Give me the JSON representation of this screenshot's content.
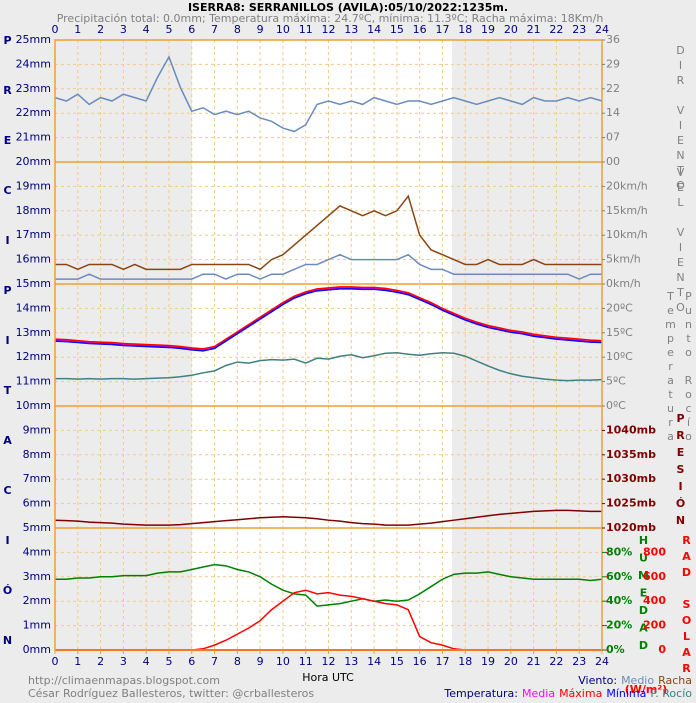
{
  "chart_data": [
    {
      "type": "line",
      "title": "ISERRA8: SERRANILLOS (AVILA):05/10/2022:1235m.",
      "subtitle": "Precipitación total: 0.0mm; Temperatura máxima: 24.7ºC, mínima: 11.3ºC; Racha máxima: 18Km/h",
      "x_label": "Hora UTC",
      "y_label": "PRECIPITACIÓN",
      "grid": true,
      "xlim": [
        0,
        24
      ],
      "xticks": [
        0,
        1,
        2,
        3,
        4,
        5,
        6,
        7,
        8,
        9,
        10,
        11,
        12,
        13,
        14,
        15,
        16,
        17,
        18,
        19,
        20,
        21,
        22,
        23,
        24
      ],
      "ylim": [
        0,
        25
      ],
      "yticks": [
        {
          "value": 0,
          "label": "0mm"
        },
        {
          "value": 1,
          "label": "1mm"
        },
        {
          "value": 2,
          "label": "2mm"
        },
        {
          "value": 3,
          "label": "3mm"
        },
        {
          "value": 4,
          "label": "4mm"
        },
        {
          "value": 5,
          "label": "5mm"
        },
        {
          "value": 6,
          "label": "6mm"
        },
        {
          "value": 7,
          "label": "7mm"
        },
        {
          "value": 8,
          "label": "8mm"
        },
        {
          "value": 9,
          "label": "9mm"
        },
        {
          "value": 10,
          "label": "10mm"
        },
        {
          "value": 11,
          "label": "11mm"
        },
        {
          "value": 12,
          "label": "12mm"
        },
        {
          "value": 13,
          "label": "13mm"
        },
        {
          "value": 14,
          "label": "14mm"
        },
        {
          "value": 15,
          "label": "15mm"
        },
        {
          "value": 16,
          "label": "16mm"
        },
        {
          "value": 17,
          "label": "17mm"
        },
        {
          "value": 18,
          "label": "18mm"
        },
        {
          "value": 19,
          "label": "19mm"
        },
        {
          "value": 20,
          "label": "20mm"
        },
        {
          "value": 21,
          "label": "21mm"
        },
        {
          "value": 22,
          "label": "22mm"
        },
        {
          "value": 23,
          "label": "23mm"
        },
        {
          "value": 24,
          "label": "24mm"
        },
        {
          "value": 25,
          "label": "25mm"
        }
      ],
      "x": [
        0,
        24
      ],
      "series": [
        {
          "color": "#ff0000",
          "values": [
            0,
            0
          ]
        }
      ]
    },
    {
      "type": "line",
      "y_label": "DIR VIENTO",
      "tick_color": "#808080",
      "ylim": [
        0,
        36
      ],
      "yticks": [
        {
          "value": 0,
          "label": "00"
        },
        {
          "value": 7.2,
          "label": "07"
        },
        {
          "value": 14.4,
          "label": "14"
        },
        {
          "value": 21.6,
          "label": "22"
        },
        {
          "value": 28.8,
          "label": "29"
        },
        36
      ],
      "x": [
        0,
        0.5,
        1,
        1.5,
        2,
        2.5,
        3,
        3.5,
        4,
        4.5,
        5,
        5.5,
        6,
        6.5,
        7,
        7.5,
        8,
        8.5,
        9,
        9.5,
        10,
        10.5,
        11,
        11.5,
        12,
        12.5,
        13,
        13.5,
        14,
        14.5,
        15,
        15.5,
        16,
        16.5,
        17,
        17.5,
        18,
        18.5,
        19,
        19.5,
        20,
        20.5,
        21,
        21.5,
        22,
        22.5,
        23,
        23.5,
        24
      ],
      "series": [
        {
          "color": "#6a8cbc",
          "values": [
            19,
            18,
            20,
            17,
            19,
            18,
            20,
            19,
            18,
            25,
            31,
            22,
            15,
            16,
            14,
            15,
            14,
            15,
            13,
            12,
            10,
            9,
            11,
            17,
            18,
            17,
            18,
            17,
            19,
            18,
            17,
            18,
            18,
            17,
            18,
            19,
            18,
            17,
            18,
            19,
            18,
            17,
            19,
            18,
            18,
            19,
            18,
            19,
            18
          ]
        }
      ]
    },
    {
      "type": "line",
      "y_label": "VEL VIENTO",
      "legend_title": "Viento:",
      "tick_color": "#808080",
      "ylim": [
        0,
        25
      ],
      "yticks": [
        {
          "value": 0,
          "label": "0km/h"
        },
        {
          "value": 5,
          "label": "5km/h"
        },
        {
          "value": 10,
          "label": "10km/h"
        },
        {
          "value": 15,
          "label": "15km/h"
        },
        {
          "value": 20,
          "label": "20km/h"
        }
      ],
      "x": [
        0,
        0.5,
        1,
        1.5,
        2,
        2.5,
        3,
        3.5,
        4,
        4.5,
        5,
        5.5,
        6,
        6.5,
        7,
        7.5,
        8,
        8.5,
        9,
        9.5,
        10,
        10.5,
        11,
        11.5,
        12,
        12.5,
        13,
        13.5,
        14,
        14.5,
        15,
        15.5,
        16,
        16.5,
        17,
        17.5,
        18,
        18.5,
        19,
        19.5,
        20,
        20.5,
        21,
        21.5,
        22,
        22.5,
        23,
        23.5,
        24
      ],
      "series": [
        {
          "name": "Medio",
          "color": "#6a8cbc",
          "values": [
            1,
            1,
            1,
            2,
            1,
            1,
            1,
            1,
            1,
            1,
            1,
            1,
            1,
            2,
            2,
            1,
            2,
            2,
            1,
            2,
            2,
            3,
            4,
            4,
            5,
            6,
            5,
            5,
            5,
            5,
            5,
            6,
            4,
            3,
            3,
            2,
            2,
            2,
            2,
            2,
            2,
            2,
            2,
            2,
            2,
            2,
            1,
            2,
            2
          ]
        },
        {
          "name": "Racha",
          "color": "#8b4513",
          "values": [
            4,
            4,
            3,
            4,
            4,
            4,
            3,
            4,
            3,
            3,
            3,
            3,
            4,
            4,
            4,
            4,
            4,
            4,
            3,
            5,
            6,
            8,
            10,
            12,
            14,
            16,
            15,
            14,
            15,
            14,
            15,
            18,
            10,
            7,
            6,
            5,
            4,
            4,
            5,
            4,
            4,
            4,
            5,
            4,
            4,
            4,
            4,
            4,
            4
          ]
        }
      ]
    },
    {
      "type": "line",
      "y_label": "Temperatura",
      "y_label_2": "Punto Rocío",
      "legend_title": "Temperatura:",
      "tick_color": "#808080",
      "ylim": [
        0,
        25
      ],
      "yticks": [
        {
          "value": 0,
          "label": "0ºC"
        },
        {
          "value": 5,
          "label": "5ºC"
        },
        {
          "value": 10,
          "label": "10ºC"
        },
        {
          "value": 15,
          "label": "15ºC"
        },
        {
          "value": 20,
          "label": "20ºC"
        }
      ],
      "x": [
        0,
        0.5,
        1,
        1.5,
        2,
        2.5,
        3,
        3.5,
        4,
        4.5,
        5,
        5.5,
        6,
        6.5,
        7,
        7.5,
        8,
        8.5,
        9,
        9.5,
        10,
        10.5,
        11,
        11.5,
        12,
        12.5,
        13,
        13.5,
        14,
        14.5,
        15,
        15.5,
        16,
        16.5,
        17,
        17.5,
        18,
        18.5,
        19,
        19.5,
        20,
        20.5,
        21,
        21.5,
        22,
        22.5,
        23,
        23.5,
        24
      ],
      "series": [
        {
          "name": "Media",
          "color": "#ff00ff",
          "values": [
            13.5,
            13.4,
            13.2,
            13.0,
            12.9,
            12.8,
            12.6,
            12.5,
            12.4,
            12.3,
            12.2,
            12.0,
            11.7,
            11.5,
            12.0,
            13.5,
            15.0,
            16.5,
            18.0,
            19.5,
            21.0,
            22.3,
            23.2,
            23.8,
            24.0,
            24.2,
            24.2,
            24.1,
            24.1,
            23.9,
            23.5,
            23.0,
            22.0,
            21.0,
            19.8,
            18.8,
            17.8,
            17.0,
            16.3,
            15.8,
            15.3,
            15.0,
            14.5,
            14.2,
            13.9,
            13.7,
            13.5,
            13.3,
            13.2
          ]
        },
        {
          "name": "Máxima",
          "color": "#ff0000",
          "values": [
            13.7,
            13.6,
            13.4,
            13.2,
            13.1,
            13.0,
            12.8,
            12.7,
            12.6,
            12.5,
            12.4,
            12.2,
            11.9,
            11.7,
            12.2,
            13.7,
            15.2,
            16.7,
            18.2,
            19.7,
            21.2,
            22.5,
            23.4,
            24.0,
            24.2,
            24.4,
            24.4,
            24.3,
            24.3,
            24.1,
            23.7,
            23.2,
            22.2,
            21.2,
            20.0,
            19.0,
            18.0,
            17.2,
            16.5,
            16.0,
            15.5,
            15.2,
            14.7,
            14.4,
            14.1,
            13.9,
            13.7,
            13.5,
            13.4
          ]
        },
        {
          "name": "Mínima",
          "color": "#0000ff",
          "values": [
            13.3,
            13.2,
            13.0,
            12.8,
            12.7,
            12.6,
            12.4,
            12.3,
            12.2,
            12.1,
            12.0,
            11.8,
            11.5,
            11.3,
            11.8,
            13.3,
            14.8,
            16.3,
            17.8,
            19.3,
            20.8,
            22.1,
            23.0,
            23.6,
            23.8,
            24.0,
            24.0,
            23.9,
            23.9,
            23.7,
            23.3,
            22.8,
            21.8,
            20.8,
            19.6,
            18.6,
            17.6,
            16.8,
            16.1,
            15.6,
            15.1,
            14.8,
            14.3,
            14.0,
            13.7,
            13.5,
            13.3,
            13.1,
            13.0
          ]
        },
        {
          "name": "P. Rocío",
          "color": "#408080",
          "values": [
            5.6,
            5.6,
            5.5,
            5.6,
            5.5,
            5.6,
            5.6,
            5.5,
            5.6,
            5.7,
            5.8,
            6.0,
            6.3,
            6.8,
            7.2,
            8.3,
            9.0,
            8.8,
            9.3,
            9.5,
            9.4,
            9.6,
            8.8,
            9.8,
            9.6,
            10.2,
            10.5,
            9.9,
            10.3,
            10.8,
            10.9,
            10.6,
            10.4,
            10.7,
            10.9,
            10.8,
            10.2,
            9.2,
            8.2,
            7.3,
            6.6,
            6.1,
            5.8,
            5.5,
            5.3,
            5.2,
            5.3,
            5.3,
            5.4
          ]
        }
      ]
    },
    {
      "type": "line",
      "y_label": "PRESIÓN",
      "tick_color": "#800000",
      "ylim": [
        1020,
        1045
      ],
      "yticks": [
        {
          "value": 1020,
          "label": "1020mb"
        },
        {
          "value": 1025,
          "label": "1025mb"
        },
        {
          "value": 1030,
          "label": "1030mb"
        },
        {
          "value": 1035,
          "label": "1035mb"
        },
        {
          "value": 1040,
          "label": "1040mb"
        }
      ],
      "x": [
        0,
        0.5,
        1,
        1.5,
        2,
        2.5,
        3,
        3.5,
        4,
        4.5,
        5,
        5.5,
        6,
        6.5,
        7,
        7.5,
        8,
        8.5,
        9,
        9.5,
        10,
        10.5,
        11,
        11.5,
        12,
        12.5,
        13,
        13.5,
        14,
        14.5,
        15,
        15.5,
        16,
        16.5,
        17,
        17.5,
        18,
        18.5,
        19,
        19.5,
        20,
        20.5,
        21,
        21.5,
        22,
        22.5,
        23,
        23.5,
        24
      ],
      "series": [
        {
          "color": "#800000",
          "values": [
            1021.6,
            1021.5,
            1021.4,
            1021.2,
            1021.1,
            1021.0,
            1020.8,
            1020.7,
            1020.6,
            1020.6,
            1020.6,
            1020.7,
            1020.9,
            1021.1,
            1021.3,
            1021.5,
            1021.7,
            1021.9,
            1022.1,
            1022.2,
            1022.3,
            1022.2,
            1022.1,
            1021.9,
            1021.6,
            1021.4,
            1021.1,
            1020.9,
            1020.8,
            1020.6,
            1020.6,
            1020.6,
            1020.8,
            1021.0,
            1021.3,
            1021.6,
            1021.9,
            1022.2,
            1022.5,
            1022.8,
            1023.0,
            1023.2,
            1023.4,
            1023.5,
            1023.6,
            1023.6,
            1023.5,
            1023.4,
            1023.4
          ]
        }
      ]
    },
    {
      "type": "line",
      "y_label": "HUMEDAD",
      "y2_label": "RAD SOLAR",
      "y2_unit": "(W/m²)",
      "tick_color": "#008000",
      "y2_tick_color": "#ff0000",
      "ylim": [
        0,
        100
      ],
      "yticks": [
        {
          "value": 0,
          "label": "0%"
        },
        {
          "value": 20,
          "label": "20%"
        },
        {
          "value": 40,
          "label": "40%"
        },
        {
          "value": 60,
          "label": "60%"
        },
        {
          "value": 80,
          "label": "80%"
        }
      ],
      "y2lim": [
        0,
        1000
      ],
      "y2ticks": [
        0,
        200,
        400,
        600,
        800
      ],
      "x": [
        0,
        0.5,
        1,
        1.5,
        2,
        2.5,
        3,
        3.5,
        4,
        4.5,
        5,
        5.5,
        6,
        6.5,
        7,
        7.5,
        8,
        8.5,
        9,
        9.5,
        10,
        10.5,
        11,
        11.5,
        12,
        12.5,
        13,
        13.5,
        14,
        14.5,
        15,
        15.5,
        16,
        16.5,
        17,
        17.5,
        18,
        18.5,
        19,
        19.5,
        20,
        20.5,
        21,
        21.5,
        22,
        22.5,
        23,
        23.5,
        24
      ],
      "series": [
        {
          "color": "#008000",
          "values": [
            58,
            58,
            59,
            59,
            60,
            60,
            61,
            61,
            61,
            63,
            64,
            64,
            66,
            68,
            70,
            69,
            66,
            64,
            60,
            54,
            49,
            46,
            45,
            36,
            37,
            38,
            40,
            42,
            40,
            41,
            40,
            41,
            46,
            52,
            58,
            62,
            63,
            63,
            64,
            62,
            60,
            59,
            58,
            58,
            58,
            58,
            58,
            57,
            58
          ]
        },
        {
          "color": "#ff0000",
          "axis": "y2",
          "values": [
            0,
            0,
            0,
            0,
            0,
            0,
            0,
            0,
            0,
            0,
            0,
            0,
            0,
            10,
            40,
            80,
            130,
            180,
            240,
            330,
            400,
            470,
            490,
            460,
            470,
            450,
            440,
            420,
            400,
            380,
            370,
            330,
            110,
            60,
            40,
            10,
            0,
            0,
            0,
            0,
            0,
            0,
            0,
            0,
            0,
            0,
            0,
            0,
            0
          ]
        }
      ]
    }
  ],
  "footer": {
    "url": "http://climaenmapas.blogspot.com",
    "author": "César Rodríguez Ballesteros, twitter: @crballesteros"
  }
}
